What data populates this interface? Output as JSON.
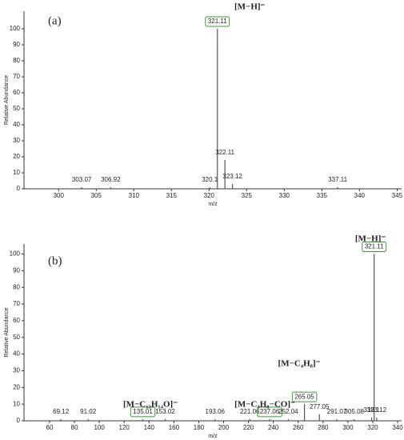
{
  "chart_data": [
    {
      "type": "stem",
      "annotations": [
        "(a)",
        "[M−H]⁻"
      ],
      "y_label": "Relative Abundance",
      "x_label": "m/z",
      "color": "#555555",
      "box_color": "#3a9a3a",
      "x": [
        303.07,
        306.92,
        320.1,
        321.11,
        322.11,
        323.12,
        337.11
      ],
      "values": [
        1,
        1,
        1,
        100,
        18,
        3,
        1
      ],
      "boxed": [
        false,
        false,
        false,
        true,
        false,
        false,
        false
      ],
      "xlim": [
        295.4,
        345.6
      ],
      "xticks": [
        300,
        305,
        310,
        315,
        320,
        325,
        330,
        335,
        340,
        345
      ],
      "ylim": [
        0,
        111
      ],
      "yticks": [
        0,
        10,
        20,
        30,
        40,
        50,
        60,
        70,
        80,
        90,
        100
      ]
    },
    {
      "type": "stem",
      "annotations": [
        "(b)",
        "[M−H]⁻",
        "[M−C₄H₈]⁻",
        "[M−C₄H₈−CO]⁻",
        "[M−C₁₃H₁₄O]⁻"
      ],
      "y_label": "Relative Abundance",
      "x_label": "m/z",
      "color": "#555555",
      "box_color": "#3a9a3a",
      "x": [
        69.12,
        91.02,
        135.01,
        153.02,
        193.06,
        221.06,
        237.06,
        252.04,
        265.05,
        277.05,
        291.07,
        305.08,
        319.1,
        321.11,
        323.12
      ],
      "values": [
        1,
        1,
        1,
        1,
        1,
        1,
        1,
        1,
        10,
        4,
        1,
        1,
        2,
        100,
        2
      ],
      "boxed": [
        false,
        false,
        true,
        false,
        false,
        false,
        true,
        false,
        true,
        false,
        false,
        false,
        false,
        true,
        false
      ],
      "xlim": [
        39.4,
        343.2
      ],
      "xticks": [
        60,
        80,
        100,
        120,
        140,
        160,
        180,
        200,
        220,
        240,
        260,
        280,
        300,
        320,
        340
      ],
      "ylim": [
        0,
        106
      ],
      "yticks": [
        0,
        10,
        20,
        30,
        40,
        50,
        60,
        70,
        80,
        90,
        100
      ]
    }
  ]
}
